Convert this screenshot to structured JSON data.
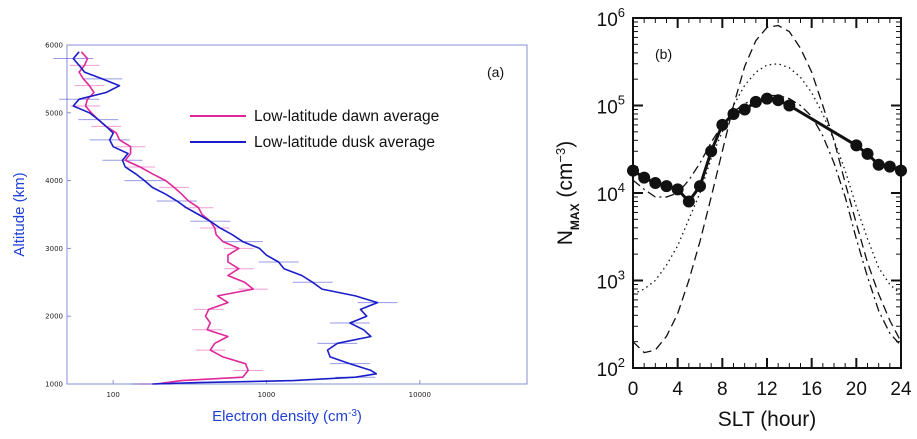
{
  "chart_data": [
    {
      "panel_label": "(a)",
      "type": "line",
      "xlabel": "Electron density (cm",
      "xlabel_sup": "-3",
      "xlabel_end": ")",
      "ylabel": "Altitude (km)",
      "x_scale": "log",
      "xlim": [
        50,
        50000
      ],
      "ylim": [
        1000,
        6000
      ],
      "x_ticks": [
        100,
        1000,
        10000
      ],
      "x_tick_labels": [
        "100",
        "1000",
        "10000"
      ],
      "y_ticks": [
        1000,
        2000,
        3000,
        4000,
        5000,
        6000
      ],
      "y_tick_labels": [
        "1000",
        "2000",
        "3000",
        "4000",
        "5000",
        "6000"
      ],
      "legend_position": "upper-right",
      "series": [
        {
          "name": "Low-latitude dawn average",
          "color": "#e0279c",
          "altitude": [
            1000,
            1050,
            1100,
            1200,
            1300,
            1400,
            1500,
            1600,
            1700,
            1800,
            1900,
            2000,
            2100,
            2200,
            2300,
            2400,
            2500,
            2600,
            2700,
            2800,
            2900,
            3000,
            3100,
            3200,
            3300,
            3400,
            3500,
            3600,
            3700,
            3800,
            3900,
            4000,
            4100,
            4200,
            4300,
            4400,
            4500,
            4600,
            4700,
            4800,
            4900,
            5000,
            5100,
            5200,
            5300,
            5400,
            5500,
            5600,
            5700,
            5800,
            5900
          ],
          "density": [
            190,
            280,
            700,
            760,
            730,
            520,
            430,
            460,
            560,
            410,
            430,
            400,
            420,
            560,
            480,
            820,
            720,
            560,
            660,
            560,
            560,
            660,
            520,
            470,
            460,
            430,
            380,
            360,
            310,
            280,
            250,
            220,
            180,
            150,
            120,
            130,
            130,
            110,
            105,
            90,
            80,
            72,
            66,
            68,
            75,
            70,
            64,
            60,
            65,
            68,
            62
          ]
        },
        {
          "name": "Low-latitude dusk average",
          "color": "#1a1ec8",
          "altitude": [
            1000,
            1020,
            1050,
            1100,
            1150,
            1200,
            1300,
            1400,
            1500,
            1600,
            1700,
            1800,
            1900,
            2000,
            2100,
            2200,
            2300,
            2400,
            2500,
            2600,
            2700,
            2800,
            2900,
            3000,
            3100,
            3200,
            3300,
            3400,
            3500,
            3600,
            3700,
            3800,
            3900,
            4000,
            4100,
            4200,
            4300,
            4400,
            4500,
            4600,
            4700,
            4800,
            4900,
            5000,
            5100,
            5200,
            5300,
            5400,
            5500,
            5600,
            5700,
            5800,
            5900
          ],
          "density": [
            180,
            360,
            1500,
            3800,
            5200,
            4800,
            3500,
            2600,
            2500,
            2900,
            4800,
            4300,
            3500,
            4500,
            4100,
            5300,
            3800,
            2300,
            2000,
            1700,
            1300,
            1200,
            1000,
            900,
            700,
            600,
            500,
            430,
            360,
            300,
            260,
            220,
            180,
            160,
            140,
            120,
            115,
            125,
            100,
            95,
            100,
            90,
            80,
            70,
            55,
            60,
            90,
            110,
            85,
            65,
            60,
            55,
            60
          ]
        }
      ]
    },
    {
      "panel_label": "(b)",
      "type": "line",
      "xlabel": "SLT (hour)",
      "ylabel": "N",
      "ylabel_sub": "MAX",
      "ylabel_unit": " (cm",
      "ylabel_sup": "−3",
      "ylabel_end": ")",
      "y_scale": "log",
      "xlim": [
        0,
        24
      ],
      "ylim": [
        100,
        1000000
      ],
      "x_ticks": [
        0,
        4,
        8,
        12,
        16,
        20,
        24
      ],
      "x_tick_labels": [
        "0",
        "4",
        "8",
        "12",
        "16",
        "20",
        "24"
      ],
      "y_ticks": [
        100,
        1000,
        10000,
        100000,
        1000000
      ],
      "y_tick_labels": [
        {
          "base": "10",
          "exp": "2"
        },
        {
          "base": "10",
          "exp": "3"
        },
        {
          "base": "10",
          "exp": "4"
        },
        {
          "base": "10",
          "exp": "5"
        },
        {
          "base": "10",
          "exp": "6"
        }
      ],
      "series": [
        {
          "style": "thick solid with filled circles",
          "color": "#111111",
          "x": [
            0,
            1,
            2,
            3,
            4,
            5,
            6,
            7,
            8,
            9,
            10,
            11,
            12,
            13,
            14,
            20,
            21,
            22,
            23,
            24
          ],
          "y": [
            18000,
            15000,
            13000,
            12000,
            11000,
            8000,
            12000,
            30000,
            60000,
            80000,
            90000,
            110000,
            120000,
            115000,
            100000,
            35000,
            28000,
            21000,
            20000,
            18000
          ]
        },
        {
          "style": "dashed",
          "color": "#111111",
          "x": [
            0,
            1,
            2,
            3,
            4,
            5,
            6,
            7,
            8,
            9,
            10,
            11,
            12,
            13,
            14,
            15,
            16,
            17,
            18,
            19,
            20,
            21,
            22,
            23,
            24
          ],
          "y": [
            200,
            150,
            160,
            230,
            420,
            1000,
            2800,
            9000,
            30000,
            100000,
            280000,
            550000,
            780000,
            820000,
            700000,
            450000,
            240000,
            100000,
            40000,
            13000,
            4500,
            1600,
            700,
            350,
            200
          ]
        },
        {
          "style": "dotted",
          "color": "#111111",
          "x": [
            0,
            1,
            2,
            3,
            4,
            5,
            6,
            7,
            8,
            9,
            10,
            11,
            12,
            13,
            14,
            15,
            16,
            17,
            18,
            19,
            20,
            21,
            22,
            23,
            24
          ],
          "y": [
            700,
            800,
            1000,
            1500,
            2500,
            5000,
            10000,
            25000,
            50000,
            100000,
            170000,
            240000,
            290000,
            300000,
            270000,
            210000,
            140000,
            80000,
            40000,
            18000,
            7000,
            3000,
            1400,
            900,
            700
          ]
        },
        {
          "style": "dash-dot",
          "color": "#111111",
          "x": [
            0,
            1,
            2,
            3,
            4,
            5,
            6,
            7,
            8,
            9,
            10,
            11,
            12,
            13,
            14,
            15,
            16,
            17,
            18,
            19,
            20,
            21,
            22,
            23,
            24
          ],
          "y": [
            14000,
            11000,
            9000,
            9000,
            10000,
            14000,
            22000,
            38000,
            60000,
            85000,
            105000,
            120000,
            130000,
            130000,
            120000,
            100000,
            75000,
            45000,
            22000,
            9000,
            3000,
            1100,
            450,
            250,
            180
          ]
        }
      ]
    }
  ]
}
